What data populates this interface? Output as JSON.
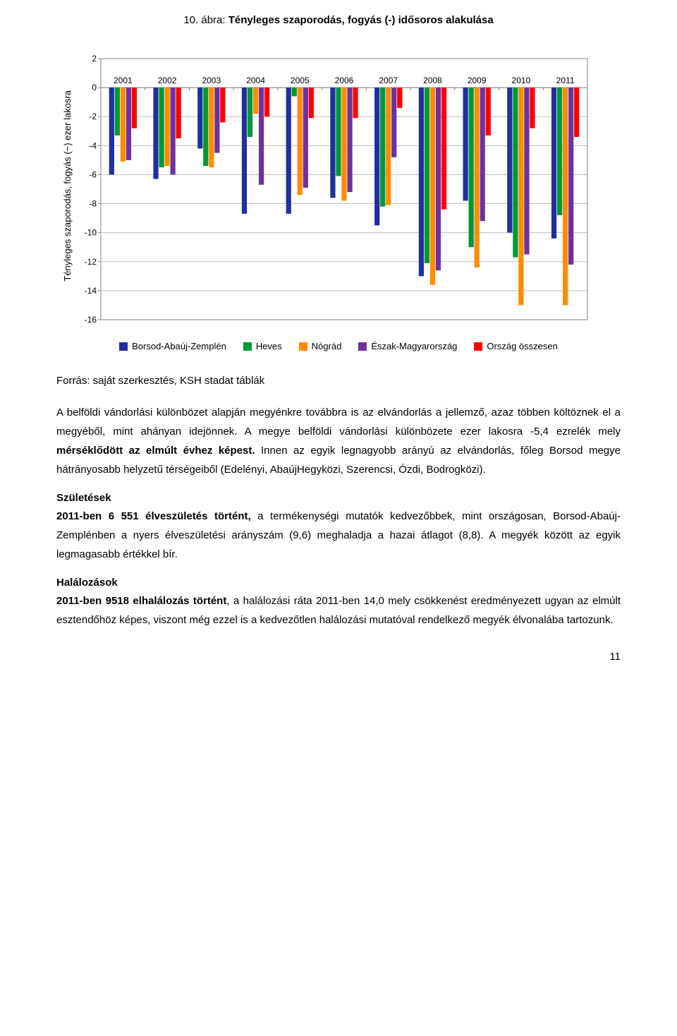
{
  "chart": {
    "title_prefix": "10. ábra: ",
    "title_bold": "Tényleges szaporodás, fogyás (-) idősoros alakulása",
    "ylabel": "Tényleges szaporodás, fogyás (−) ezer lakosra",
    "years": [
      "2001",
      "2002",
      "2003",
      "2004",
      "2005",
      "2006",
      "2007",
      "2008",
      "2009",
      "2010",
      "2011"
    ],
    "ylim": [
      -16,
      2
    ],
    "ytick_step": 2,
    "grid_color": "#c0c0c0",
    "axis_color": "#808080",
    "bg": "#ffffff",
    "bar_gap": 0.02,
    "group_gap": 0.18,
    "series": [
      {
        "name": "Borsod-Abaúj-Zemplén",
        "color": "#1f2fa0",
        "values": [
          -6.0,
          -6.3,
          -4.2,
          -8.7,
          -8.7,
          -7.6,
          -9.5,
          -13.0,
          -7.8,
          -10.0,
          -10.4
        ]
      },
      {
        "name": "Heves",
        "color": "#009933",
        "values": [
          -3.3,
          -5.5,
          -5.4,
          -3.4,
          -0.6,
          -6.1,
          -8.2,
          -12.1,
          -11.0,
          -11.7,
          -8.8
        ]
      },
      {
        "name": "Nógrád",
        "color": "#ff8c00",
        "values": [
          -5.1,
          -5.4,
          -5.5,
          -1.8,
          -7.4,
          -7.8,
          -8.1,
          -13.6,
          -12.4,
          -15.0,
          -15.0
        ]
      },
      {
        "name": "Észak-Magyarország",
        "color": "#7030a0",
        "values": [
          -5.0,
          -6.0,
          -4.5,
          -6.7,
          -6.9,
          -7.2,
          -4.8,
          -12.6,
          -9.2,
          -11.5,
          -12.2
        ]
      },
      {
        "name": "Ország összesen",
        "color": "#ff0000",
        "values": [
          -2.8,
          -3.5,
          -2.4,
          -2.0,
          -2.1,
          -2.1,
          -1.4,
          -8.4,
          -3.3,
          -2.8,
          -3.4
        ]
      }
    ]
  },
  "source": "Forrás: saját szerkesztés, KSH stadat táblák",
  "para1_part1": "A belföldi vándorlási különbözet alapján megyénkre továbbra is az elvándorlás a jellemző, azaz többen költöznek el a megyéből, mint ahányan idejönnek. A megye belföldi vándorlási különbözete ezer lakosra -5,4 ezrelék mely ",
  "para1_bold": "mérséklődött az elmúlt évhez képest.",
  "para1_part2": " Innen az egyik legnagyobb arányú az elvándorlás, főleg Borsod megye hátrányosabb helyzetű térségeiből (Edelényi, Abaúj­Hegyközi, Szerencsi, Ózdi, Bodrogközi).",
  "births_heading": "Születések",
  "births_bold": "2011-ben 6 551 élveszületés történt,",
  "births_rest": " a termékenységi mutatók kedvezőbbek, mint országosan, Borsod-Abaúj-Zemplénben a nyers élveszületési arányszám (9,6) meghaladja a hazai átlagot (8,8). A megyék között az egyik legmagasabb értékkel bír.",
  "deaths_heading": "Halálozások",
  "deaths_bold": "2011-ben 9518 elhalálozás történt",
  "deaths_rest": ", a halálozási ráta 2011-ben 14,0 mely csökkenést eredményezett ugyan az elmúlt esztendőhöz képes, viszont még ezzel is a kedvezőtlen halálozási mutatóval rendelkező megyék élvonalába tartozunk.",
  "page_number": "11"
}
